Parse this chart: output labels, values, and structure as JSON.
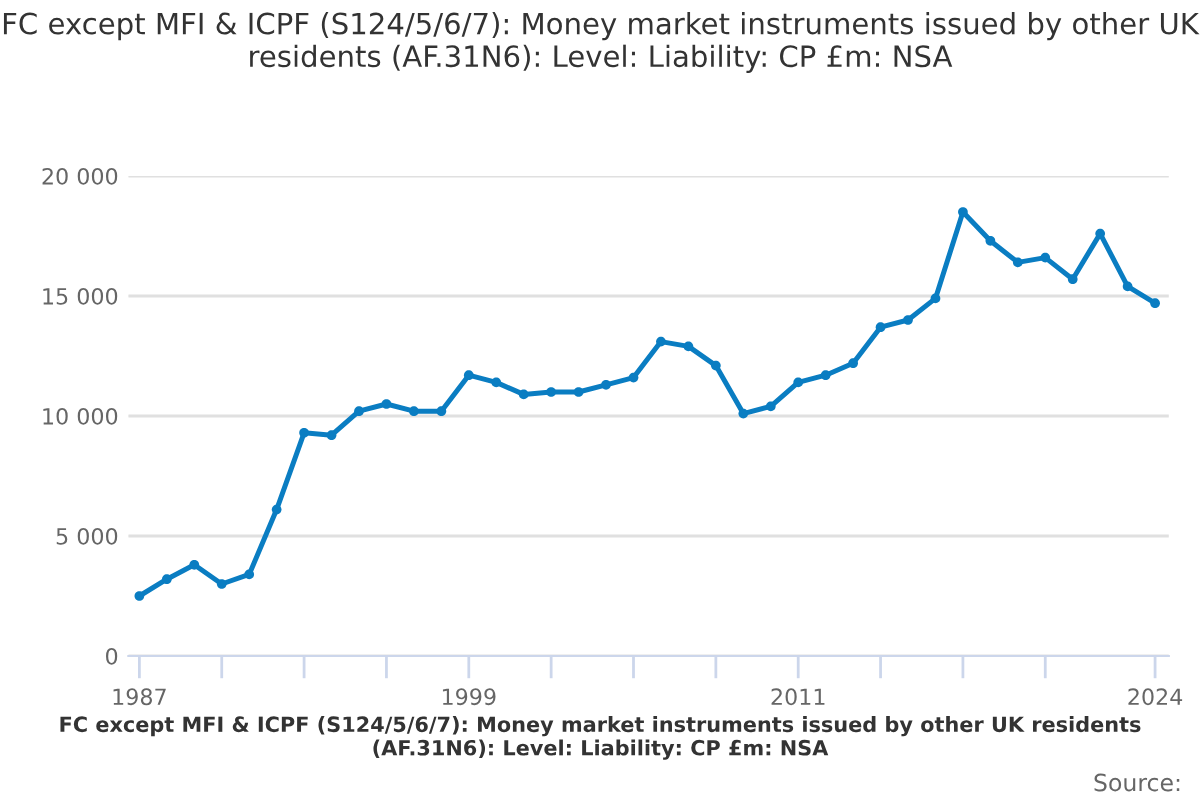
{
  "chart_data": {
    "type": "line",
    "title": "FC except MFI & ICPF (S124/5/6/7): Money market instruments issued by other UK residents (AF.31N6): Level: Liability: CP £m: NSA",
    "x": [
      1987,
      1988,
      1989,
      1990,
      1991,
      1992,
      1993,
      1994,
      1995,
      1996,
      1997,
      1998,
      1999,
      2000,
      2001,
      2002,
      2003,
      2004,
      2005,
      2006,
      2007,
      2008,
      2009,
      2010,
      2011,
      2012,
      2013,
      2014,
      2015,
      2016,
      2017,
      2018,
      2019,
      2020,
      2021,
      2022,
      2023,
      2024
    ],
    "series": [
      {
        "color": "#0a7dc2",
        "values": [
          2500,
          3200,
          3800,
          3000,
          3400,
          6100,
          9300,
          9200,
          10200,
          10500,
          10200,
          10200,
          11700,
          11400,
          10900,
          11000,
          11000,
          11300,
          11600,
          13100,
          12900,
          12100,
          10100,
          10400,
          11400,
          11700,
          12200,
          13700,
          14000,
          14900,
          18500,
          17300,
          16400,
          16600,
          15700,
          17600,
          15400,
          14700
        ]
      }
    ],
    "xlim": [
      1986.6,
      2024.5
    ],
    "xticks": [
      1987,
      {
        "value": 1990,
        "label": null
      },
      {
        "value": 1993,
        "label": null
      },
      {
        "value": 1996,
        "label": null
      },
      1999,
      {
        "value": 2002,
        "label": null
      },
      {
        "value": 2005,
        "label": null
      },
      {
        "value": 2008,
        "label": null
      },
      2011,
      {
        "value": 2014,
        "label": null
      },
      {
        "value": 2017,
        "label": null
      },
      {
        "value": 2020,
        "label": null
      },
      2024
    ],
    "ylim": [
      0,
      20000
    ],
    "yticks": [
      0,
      {
        "value": 5000,
        "label": "5 000"
      },
      {
        "value": 10000,
        "label": "10 000"
      },
      {
        "value": 15000,
        "label": "15 000"
      },
      {
        "value": 20000,
        "label": "20 000"
      }
    ],
    "grid": "y",
    "marker": "circle",
    "line_style": "solid",
    "annotations": [
      "FC except MFI & ICPF (S124/5/6/7): Money market instruments issued by other UK residents (AF.31N6): Level: Liability: CP £m: NSA",
      "Source:"
    ]
  }
}
